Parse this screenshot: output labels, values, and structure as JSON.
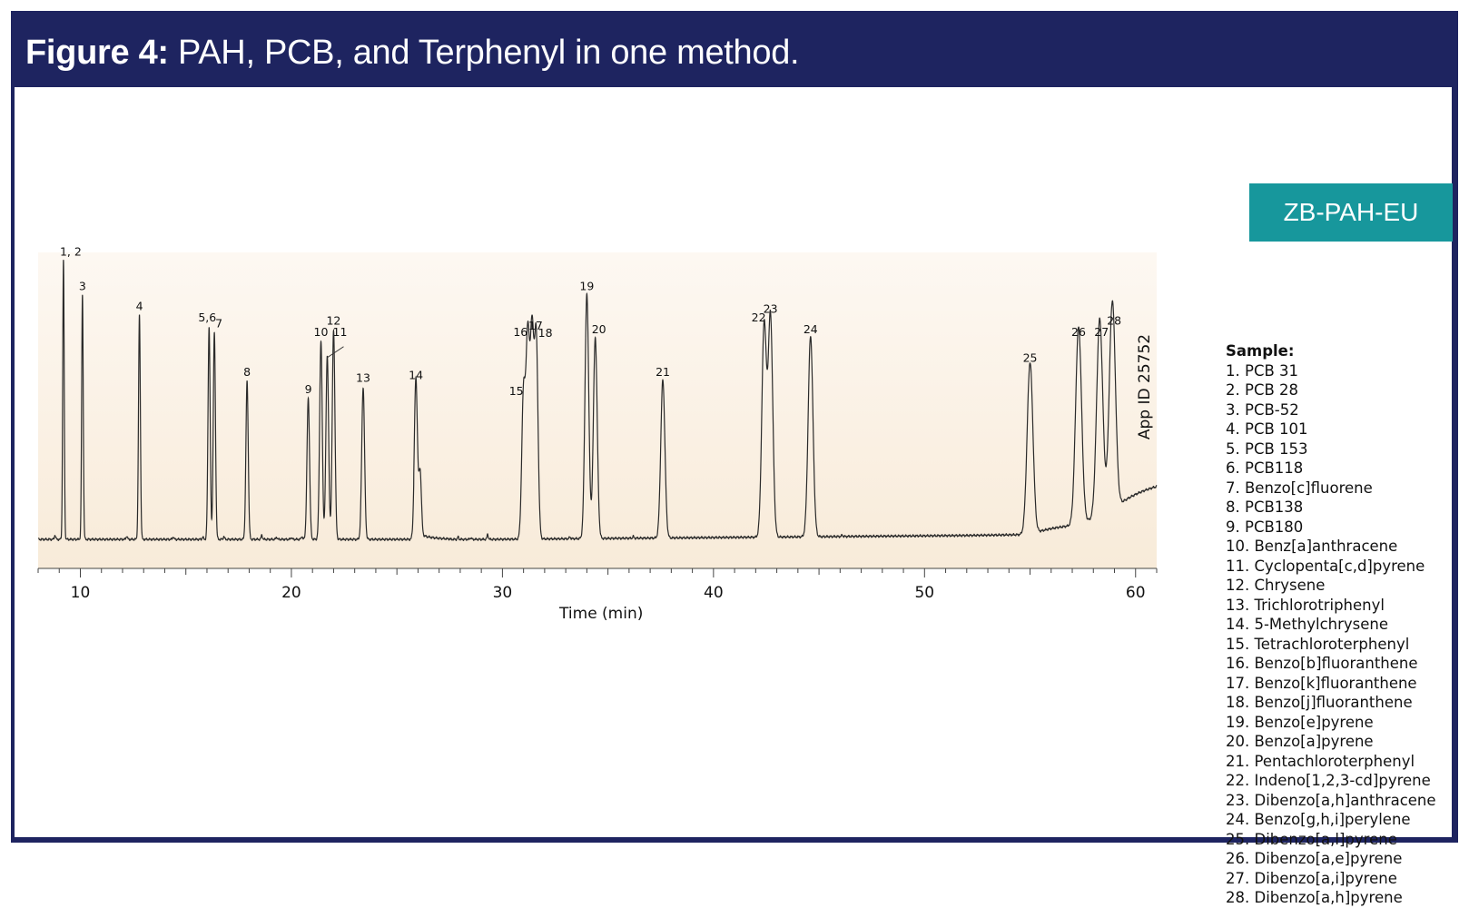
{
  "header": {
    "title_lead": "Figure 4:",
    "title_rest": "PAH, PCB, and Terphenyl in one method."
  },
  "badge": {
    "label": "ZB-PAH-EU",
    "color": "#17979c"
  },
  "colors": {
    "frame": "#1e2460",
    "trace": "#2a2a2a",
    "plot_bg_top": "#fdf8f2",
    "plot_bg_bottom": "#f8ebd9"
  },
  "legend": {
    "heading": "Sample:",
    "items": [
      "1. PCB 31",
      "2. PCB 28",
      "3. PCB-52",
      "4. PCB 101",
      "5. PCB 153",
      "6. PCB118",
      "7. Benzo[c]fluorene",
      "8. PCB138",
      "9. PCB180",
      "10. Benz[a]anthracene",
      "11. Cyclopenta[c,d]pyrene",
      "12. Chrysene",
      "13. Trichlorotriphenyl",
      "14. 5-Methylchrysene",
      "15. Tetrachloroterphenyl",
      "16. Benzo[b]fluoranthene",
      "17. Benzo[k]fluoranthene",
      "18. Benzo[j]fluoranthene",
      "19. Benzo[e]pyrene",
      "20. Benzo[a]pyrene",
      "21. Pentachloroterphenyl",
      "22. Indeno[1,2,3-cd]pyrene",
      "23. Dibenzo[a,h]anthracene",
      "24. Benzo[g,h,i]perylene",
      "25. Dibenzo[a,l]pyrene",
      "26. Dibenzo[a,e]pyrene",
      "27. Dibenzo[a,i]pyrene",
      "28. Dibenzo[a,h]pyrene"
    ]
  },
  "chart_data": {
    "type": "line",
    "xlabel": "Time (min)",
    "ylabel": "",
    "xlim": [
      8.0,
      61.0
    ],
    "ylim": [
      0,
      100
    ],
    "x_ticks": [
      10,
      20,
      30,
      40,
      50,
      60
    ],
    "annotation": "App ID 25752",
    "grid": false,
    "peaks": [
      {
        "label": "1, 2",
        "x": 9.2,
        "height": 97
      },
      {
        "label": "3",
        "x": 10.1,
        "height": 85
      },
      {
        "label": "4",
        "x": 12.8,
        "height": 78
      },
      {
        "label": "5,6",
        "x": 16.1,
        "height": 74
      },
      {
        "label": "7",
        "x": 16.35,
        "height": 72
      },
      {
        "label": "8",
        "x": 17.9,
        "height": 55
      },
      {
        "label": "9",
        "x": 20.8,
        "height": 49
      },
      {
        "label": "10",
        "x": 21.4,
        "height": 69
      },
      {
        "label": "11",
        "x": 21.7,
        "height": 64
      },
      {
        "label": "12",
        "x": 22.0,
        "height": 73
      },
      {
        "label": "13",
        "x": 23.4,
        "height": 53
      },
      {
        "label": "14",
        "x": 25.9,
        "height": 54
      },
      {
        "label": "15",
        "x": 31.0,
        "height": 51
      },
      {
        "label": "16",
        "x": 31.2,
        "height": 69
      },
      {
        "label": "17",
        "x": 31.4,
        "height": 70
      },
      {
        "label": "18",
        "x": 31.6,
        "height": 70
      },
      {
        "label": "19",
        "x": 34.0,
        "height": 85
      },
      {
        "label": "20",
        "x": 34.4,
        "height": 70
      },
      {
        "label": "21",
        "x": 37.6,
        "height": 55
      },
      {
        "label": "22",
        "x": 42.4,
        "height": 74
      },
      {
        "label": "23",
        "x": 42.7,
        "height": 77
      },
      {
        "label": "24",
        "x": 44.6,
        "height": 70
      },
      {
        "label": "25",
        "x": 55.0,
        "height": 60
      },
      {
        "label": "26",
        "x": 57.3,
        "height": 69
      },
      {
        "label": "27",
        "x": 58.3,
        "height": 69
      },
      {
        "label": "28",
        "x": 58.9,
        "height": 73
      }
    ]
  }
}
